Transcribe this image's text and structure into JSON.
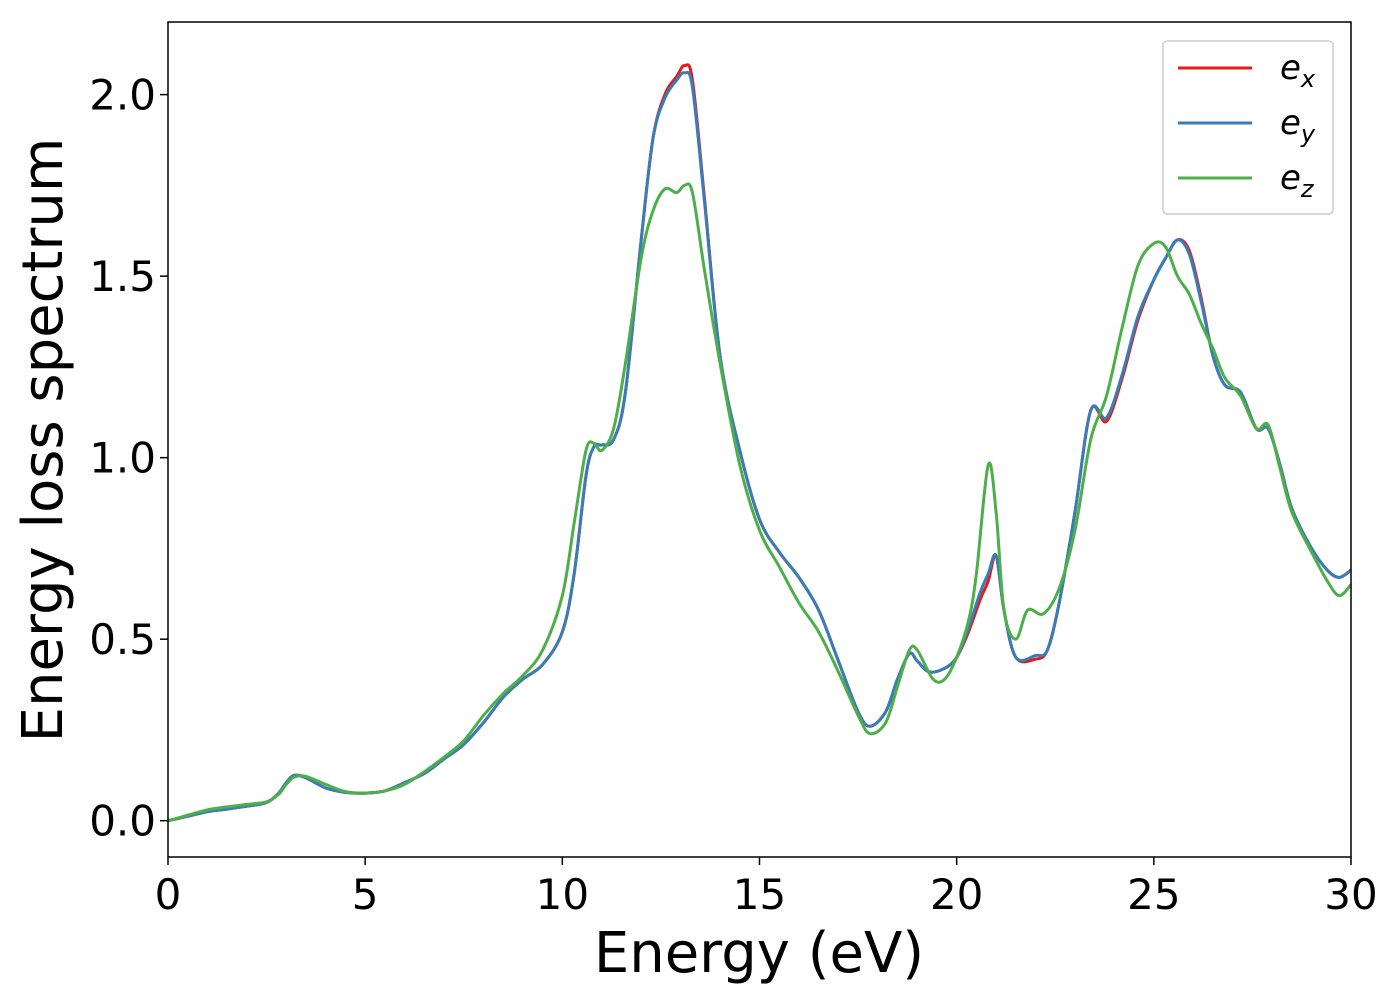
{
  "chart_data": {
    "type": "line",
    "xlabel": "Energy (eV)",
    "ylabel": "Energy loss spectrum",
    "xlim": [
      0,
      30
    ],
    "ylim": [
      -0.1,
      2.2
    ],
    "x_ticks": [
      0,
      5,
      10,
      15,
      20,
      25,
      30
    ],
    "x_tick_labels": [
      "0",
      "5",
      "10",
      "15",
      "20",
      "25",
      "30"
    ],
    "y_ticks": [
      0.0,
      0.5,
      1.0,
      1.5,
      2.0
    ],
    "y_tick_labels": [
      "0.0",
      "0.5",
      "1.0",
      "1.5",
      "2.0"
    ],
    "grid": false,
    "legend_position": "top-right",
    "series": [
      {
        "name": "e_x",
        "legend_main": "e",
        "legend_sub": "x",
        "color": "#e41a1c",
        "points": [
          [
            0.0,
            0.0
          ],
          [
            0.5,
            0.012
          ],
          [
            1.0,
            0.025
          ],
          [
            1.5,
            0.032
          ],
          [
            2.0,
            0.04
          ],
          [
            2.5,
            0.05
          ],
          [
            2.8,
            0.075
          ],
          [
            3.0,
            0.105
          ],
          [
            3.2,
            0.125
          ],
          [
            3.5,
            0.118
          ],
          [
            4.0,
            0.09
          ],
          [
            4.5,
            0.078
          ],
          [
            5.0,
            0.076
          ],
          [
            5.5,
            0.082
          ],
          [
            6.0,
            0.105
          ],
          [
            6.5,
            0.13
          ],
          [
            7.0,
            0.17
          ],
          [
            7.5,
            0.21
          ],
          [
            8.0,
            0.27
          ],
          [
            8.5,
            0.34
          ],
          [
            9.0,
            0.39
          ],
          [
            9.5,
            0.43
          ],
          [
            10.0,
            0.52
          ],
          [
            10.3,
            0.68
          ],
          [
            10.6,
            0.95
          ],
          [
            10.8,
            1.03
          ],
          [
            11.0,
            1.035
          ],
          [
            11.3,
            1.05
          ],
          [
            11.6,
            1.18
          ],
          [
            12.0,
            1.6
          ],
          [
            12.3,
            1.88
          ],
          [
            12.6,
            2.0
          ],
          [
            12.9,
            2.05
          ],
          [
            13.1,
            2.08
          ],
          [
            13.3,
            2.04
          ],
          [
            13.6,
            1.72
          ],
          [
            14.0,
            1.28
          ],
          [
            14.5,
            1.02
          ],
          [
            15.0,
            0.83
          ],
          [
            15.5,
            0.74
          ],
          [
            16.0,
            0.67
          ],
          [
            16.5,
            0.58
          ],
          [
            17.0,
            0.44
          ],
          [
            17.5,
            0.3
          ],
          [
            17.8,
            0.26
          ],
          [
            18.2,
            0.3
          ],
          [
            18.5,
            0.39
          ],
          [
            18.8,
            0.46
          ],
          [
            19.0,
            0.44
          ],
          [
            19.3,
            0.41
          ],
          [
            19.7,
            0.42
          ],
          [
            20.0,
            0.45
          ],
          [
            20.3,
            0.52
          ],
          [
            20.6,
            0.61
          ],
          [
            20.8,
            0.66
          ],
          [
            21.0,
            0.73
          ],
          [
            21.2,
            0.58
          ],
          [
            21.5,
            0.45
          ],
          [
            22.0,
            0.445
          ],
          [
            22.3,
            0.47
          ],
          [
            22.6,
            0.6
          ],
          [
            23.0,
            0.85
          ],
          [
            23.4,
            1.13
          ],
          [
            23.8,
            1.1
          ],
          [
            24.2,
            1.22
          ],
          [
            24.6,
            1.38
          ],
          [
            25.0,
            1.49
          ],
          [
            25.3,
            1.55
          ],
          [
            25.6,
            1.6
          ],
          [
            25.9,
            1.57
          ],
          [
            26.2,
            1.44
          ],
          [
            26.5,
            1.28
          ],
          [
            26.8,
            1.2
          ],
          [
            27.2,
            1.18
          ],
          [
            27.6,
            1.08
          ],
          [
            27.9,
            1.08
          ],
          [
            28.2,
            0.98
          ],
          [
            28.5,
            0.86
          ],
          [
            29.0,
            0.75
          ],
          [
            29.4,
            0.69
          ],
          [
            29.7,
            0.67
          ],
          [
            30.0,
            0.69
          ]
        ]
      },
      {
        "name": "e_y",
        "legend_main": "e",
        "legend_sub": "y",
        "color": "#377eb8",
        "points": [
          [
            0.0,
            0.0
          ],
          [
            0.5,
            0.012
          ],
          [
            1.0,
            0.025
          ],
          [
            1.5,
            0.032
          ],
          [
            2.0,
            0.04
          ],
          [
            2.5,
            0.05
          ],
          [
            2.8,
            0.075
          ],
          [
            3.0,
            0.105
          ],
          [
            3.2,
            0.125
          ],
          [
            3.5,
            0.118
          ],
          [
            4.0,
            0.09
          ],
          [
            4.5,
            0.078
          ],
          [
            5.0,
            0.076
          ],
          [
            5.5,
            0.082
          ],
          [
            6.0,
            0.105
          ],
          [
            6.5,
            0.13
          ],
          [
            7.0,
            0.17
          ],
          [
            7.5,
            0.21
          ],
          [
            8.0,
            0.27
          ],
          [
            8.5,
            0.34
          ],
          [
            9.0,
            0.39
          ],
          [
            9.5,
            0.43
          ],
          [
            10.0,
            0.52
          ],
          [
            10.3,
            0.68
          ],
          [
            10.6,
            0.95
          ],
          [
            10.8,
            1.03
          ],
          [
            11.0,
            1.035
          ],
          [
            11.3,
            1.05
          ],
          [
            11.6,
            1.18
          ],
          [
            12.0,
            1.6
          ],
          [
            12.3,
            1.88
          ],
          [
            12.6,
            1.99
          ],
          [
            12.9,
            2.04
          ],
          [
            13.1,
            2.06
          ],
          [
            13.3,
            2.02
          ],
          [
            13.6,
            1.71
          ],
          [
            14.0,
            1.28
          ],
          [
            14.5,
            1.02
          ],
          [
            15.0,
            0.83
          ],
          [
            15.5,
            0.74
          ],
          [
            16.0,
            0.67
          ],
          [
            16.5,
            0.58
          ],
          [
            17.0,
            0.44
          ],
          [
            17.5,
            0.3
          ],
          [
            17.8,
            0.26
          ],
          [
            18.2,
            0.3
          ],
          [
            18.5,
            0.39
          ],
          [
            18.8,
            0.46
          ],
          [
            19.0,
            0.44
          ],
          [
            19.3,
            0.41
          ],
          [
            19.7,
            0.42
          ],
          [
            20.0,
            0.45
          ],
          [
            20.3,
            0.53
          ],
          [
            20.6,
            0.63
          ],
          [
            20.8,
            0.68
          ],
          [
            21.0,
            0.73
          ],
          [
            21.2,
            0.58
          ],
          [
            21.5,
            0.45
          ],
          [
            22.0,
            0.455
          ],
          [
            22.3,
            0.47
          ],
          [
            22.6,
            0.6
          ],
          [
            23.0,
            0.85
          ],
          [
            23.4,
            1.13
          ],
          [
            23.8,
            1.11
          ],
          [
            24.2,
            1.23
          ],
          [
            24.6,
            1.39
          ],
          [
            25.0,
            1.49
          ],
          [
            25.3,
            1.55
          ],
          [
            25.6,
            1.6
          ],
          [
            25.9,
            1.56
          ],
          [
            26.2,
            1.43
          ],
          [
            26.5,
            1.28
          ],
          [
            26.8,
            1.2
          ],
          [
            27.2,
            1.18
          ],
          [
            27.6,
            1.08
          ],
          [
            27.9,
            1.08
          ],
          [
            28.2,
            0.98
          ],
          [
            28.5,
            0.86
          ],
          [
            29.0,
            0.75
          ],
          [
            29.4,
            0.69
          ],
          [
            29.7,
            0.67
          ],
          [
            30.0,
            0.69
          ]
        ]
      },
      {
        "name": "e_z",
        "legend_main": "e",
        "legend_sub": "z",
        "color": "#4daf4a",
        "points": [
          [
            0.0,
            0.0
          ],
          [
            0.5,
            0.015
          ],
          [
            1.0,
            0.03
          ],
          [
            1.5,
            0.038
          ],
          [
            2.0,
            0.045
          ],
          [
            2.5,
            0.052
          ],
          [
            2.8,
            0.072
          ],
          [
            3.0,
            0.1
          ],
          [
            3.2,
            0.12
          ],
          [
            3.5,
            0.122
          ],
          [
            4.0,
            0.1
          ],
          [
            4.5,
            0.08
          ],
          [
            5.0,
            0.076
          ],
          [
            5.5,
            0.082
          ],
          [
            6.0,
            0.1
          ],
          [
            6.5,
            0.135
          ],
          [
            7.0,
            0.175
          ],
          [
            7.5,
            0.22
          ],
          [
            8.0,
            0.29
          ],
          [
            8.5,
            0.35
          ],
          [
            9.0,
            0.4
          ],
          [
            9.5,
            0.47
          ],
          [
            10.0,
            0.62
          ],
          [
            10.3,
            0.82
          ],
          [
            10.6,
            1.02
          ],
          [
            10.8,
            1.04
          ],
          [
            11.0,
            1.02
          ],
          [
            11.3,
            1.08
          ],
          [
            11.6,
            1.26
          ],
          [
            12.0,
            1.55
          ],
          [
            12.3,
            1.68
          ],
          [
            12.6,
            1.74
          ],
          [
            12.9,
            1.73
          ],
          [
            13.1,
            1.75
          ],
          [
            13.3,
            1.73
          ],
          [
            13.6,
            1.52
          ],
          [
            14.0,
            1.26
          ],
          [
            14.5,
            0.98
          ],
          [
            15.0,
            0.8
          ],
          [
            15.5,
            0.7
          ],
          [
            16.0,
            0.6
          ],
          [
            16.5,
            0.52
          ],
          [
            17.0,
            0.41
          ],
          [
            17.5,
            0.29
          ],
          [
            17.8,
            0.24
          ],
          [
            18.2,
            0.27
          ],
          [
            18.5,
            0.37
          ],
          [
            18.8,
            0.47
          ],
          [
            19.0,
            0.47
          ],
          [
            19.4,
            0.39
          ],
          [
            19.7,
            0.39
          ],
          [
            20.0,
            0.45
          ],
          [
            20.3,
            0.55
          ],
          [
            20.5,
            0.68
          ],
          [
            20.8,
            0.98
          ],
          [
            21.0,
            0.85
          ],
          [
            21.2,
            0.58
          ],
          [
            21.5,
            0.5
          ],
          [
            21.8,
            0.58
          ],
          [
            22.2,
            0.57
          ],
          [
            22.6,
            0.64
          ],
          [
            23.0,
            0.8
          ],
          [
            23.4,
            1.05
          ],
          [
            23.8,
            1.17
          ],
          [
            24.2,
            1.36
          ],
          [
            24.6,
            1.53
          ],
          [
            25.0,
            1.59
          ],
          [
            25.3,
            1.58
          ],
          [
            25.6,
            1.5
          ],
          [
            25.9,
            1.45
          ],
          [
            26.2,
            1.37
          ],
          [
            26.5,
            1.3
          ],
          [
            26.8,
            1.22
          ],
          [
            27.2,
            1.17
          ],
          [
            27.6,
            1.08
          ],
          [
            27.9,
            1.09
          ],
          [
            28.2,
            0.97
          ],
          [
            28.5,
            0.85
          ],
          [
            29.0,
            0.74
          ],
          [
            29.4,
            0.66
          ],
          [
            29.7,
            0.62
          ],
          [
            30.0,
            0.65
          ]
        ]
      }
    ]
  }
}
